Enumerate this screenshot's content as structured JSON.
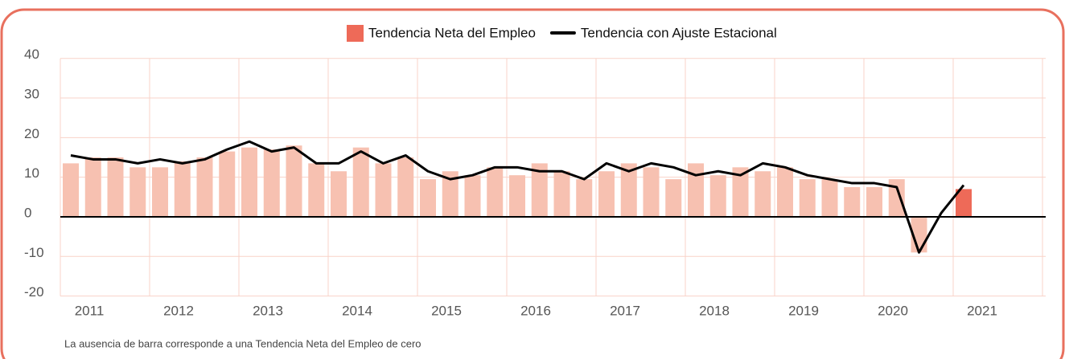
{
  "chart_data": {
    "type": "bar_line",
    "year_labels": [
      "2011",
      "2012",
      "2013",
      "2014",
      "2015",
      "2016",
      "2017",
      "2018",
      "2019",
      "2020",
      "2021"
    ],
    "series": [
      {
        "name": "Tendencia Neta del Empleo",
        "type": "bar",
        "color": "#f7c1b1",
        "colors": [
          "#f7c1b1",
          "#f7c1b1",
          "#f7c1b1",
          "#f7c1b1",
          "#f7c1b1",
          "#f7c1b1",
          "#f7c1b1",
          "#f7c1b1",
          "#f7c1b1",
          "#f7c1b1",
          "#f7c1b1",
          "#f7c1b1",
          "#f7c1b1",
          "#f7c1b1",
          "#f7c1b1",
          "#f7c1b1",
          "#f7c1b1",
          "#f7c1b1",
          "#f7c1b1",
          "#f7c1b1",
          "#f7c1b1",
          "#f7c1b1",
          "#f7c1b1",
          "#f7c1b1",
          "#f7c1b1",
          "#f7c1b1",
          "#f7c1b1",
          "#f7c1b1",
          "#f7c1b1",
          "#f7c1b1",
          "#f7c1b1",
          "#f7c1b1",
          "#f7c1b1",
          "#f7c1b1",
          "#f7c1b1",
          "#f7c1b1",
          "#f7c1b1",
          "#f7c1b1",
          "#f7c1b1",
          "#f7c1b1",
          "#ee6a58"
        ],
        "values": [
          13.5,
          15,
          15,
          12.5,
          12.5,
          14,
          15,
          16.5,
          17.5,
          17,
          18,
          13.5,
          11.5,
          17.5,
          13.5,
          15,
          9.5,
          11.5,
          10.5,
          12.5,
          10.5,
          13.5,
          11.5,
          9.5,
          11.5,
          13.5,
          12.5,
          9.5,
          13.5,
          10.5,
          12.5,
          11.5,
          12.5,
          9.5,
          9.5,
          7.5,
          7.5,
          9.5,
          -9,
          0,
          7
        ]
      },
      {
        "name": "Tendencia con Ajuste Estacional",
        "type": "line",
        "color": "#000000",
        "values": [
          15.5,
          14.5,
          14.5,
          13.5,
          14.5,
          13.5,
          14.5,
          17,
          19,
          16.5,
          17.5,
          13.5,
          13.5,
          16.5,
          13.5,
          15.5,
          11.5,
          9.5,
          10.5,
          12.5,
          12.5,
          11.5,
          11.5,
          9.5,
          13.5,
          11.5,
          13.5,
          12.5,
          10.5,
          11.5,
          10.5,
          13.5,
          12.5,
          10.5,
          9.5,
          8.5,
          8.5,
          7.5,
          -9,
          1,
          8
        ]
      }
    ],
    "ylim": [
      -20,
      40
    ],
    "yticks": [
      -20,
      -10,
      0,
      10,
      20,
      30,
      40
    ],
    "grid": true,
    "grid_color": "#f9d3c8",
    "border_color": "#e8705e",
    "note": "La ausencia de barra corresponde a una Tendencia Neta del Empleo de cero"
  }
}
